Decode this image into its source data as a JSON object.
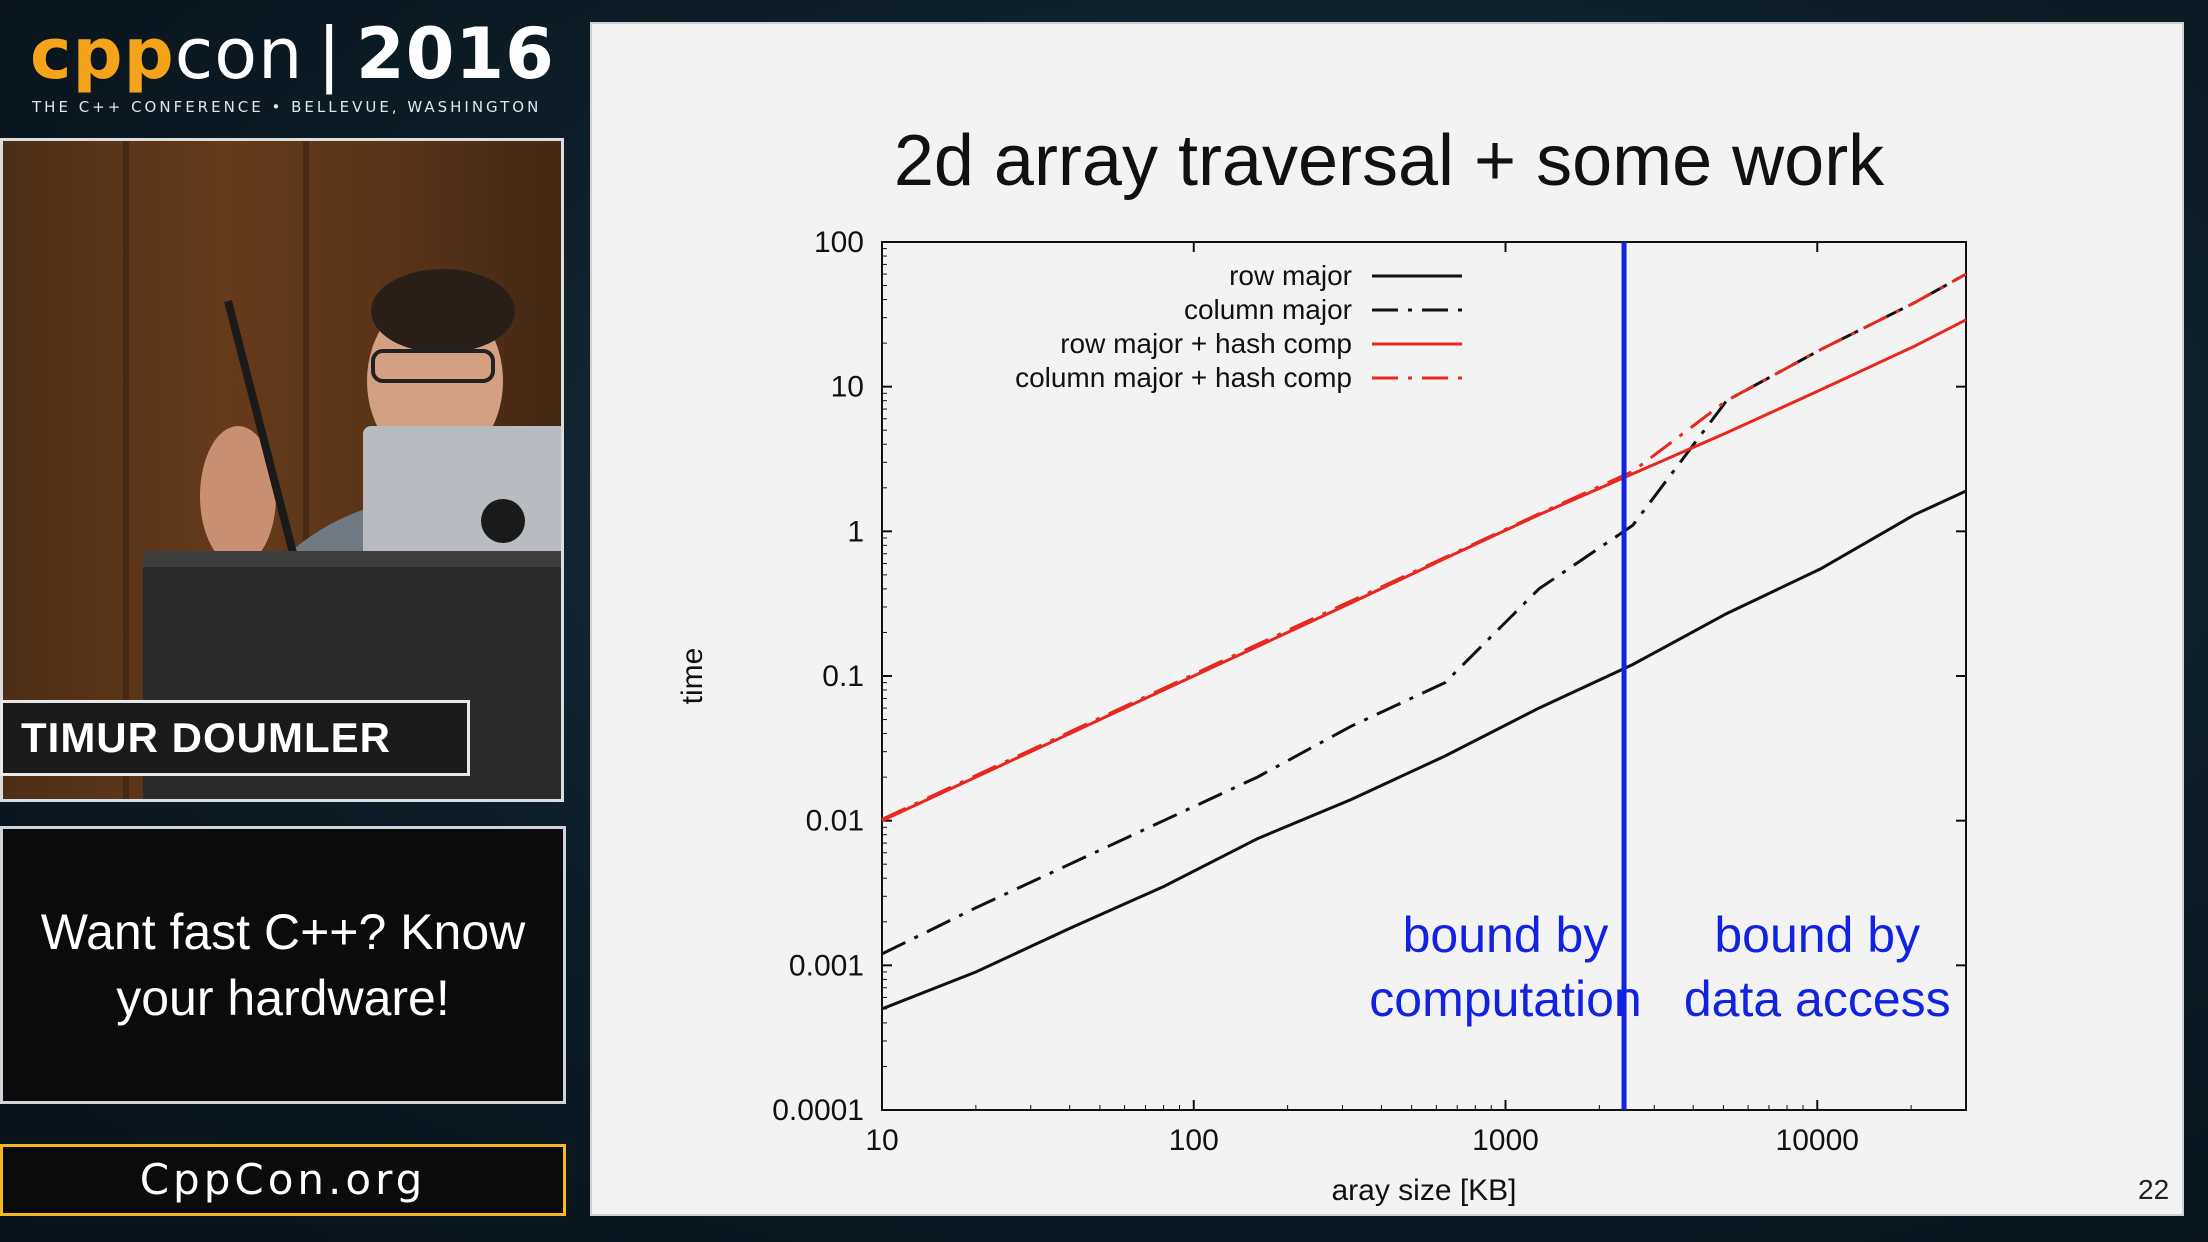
{
  "branding": {
    "logo_cpp": "cpp",
    "logo_con": "con",
    "logo_separator": "|",
    "logo_year": "2016",
    "tagline": "THE C++ CONFERENCE • BELLEVUE, WASHINGTON"
  },
  "speaker": {
    "name": "TIMUR DOUMLER"
  },
  "talk": {
    "title": "Want fast C++? Know your hardware!"
  },
  "site": {
    "url": "CppCon.org"
  },
  "slide": {
    "title": "2d array traversal + some work",
    "page_number": "22"
  },
  "colors": {
    "accent_orange": "#f5a31a",
    "series_black": "#111111",
    "series_red": "#e8281e",
    "divider_blue": "#1122e0"
  },
  "chart_data": {
    "type": "line",
    "xlabel": "aray size [KB]",
    "ylabel": "time",
    "x_scale": "log",
    "y_scale": "log",
    "xlim": [
      10,
      30000
    ],
    "ylim": [
      0.0001,
      100
    ],
    "x_ticks": [
      10,
      100,
      1000,
      10000
    ],
    "x_tick_labels": [
      "10",
      "100",
      "1000",
      "10000"
    ],
    "y_ticks": [
      100,
      10,
      1,
      0.1,
      0.01,
      0.001,
      0.0001
    ],
    "y_tick_labels": [
      "100",
      "10",
      "1",
      "0.1",
      "0.01",
      "0.001",
      "0.0001"
    ],
    "grid": false,
    "legend_position": "top-left",
    "series": [
      {
        "name": "row major",
        "color": "#111111",
        "dash": "solid",
        "points": [
          [
            10,
            0.0005
          ],
          [
            20,
            0.0009
          ],
          [
            40,
            0.0018
          ],
          [
            80,
            0.0035
          ],
          [
            160,
            0.0075
          ],
          [
            320,
            0.014
          ],
          [
            640,
            0.028
          ],
          [
            1280,
            0.06
          ],
          [
            2560,
            0.12
          ],
          [
            5120,
            0.27
          ],
          [
            10240,
            0.55
          ],
          [
            20480,
            1.3
          ],
          [
            30000,
            1.9
          ]
        ]
      },
      {
        "name": "column major",
        "color": "#111111",
        "dash": "dashdot",
        "points": [
          [
            10,
            0.0012
          ],
          [
            20,
            0.0025
          ],
          [
            40,
            0.005
          ],
          [
            80,
            0.01
          ],
          [
            160,
            0.02
          ],
          [
            320,
            0.045
          ],
          [
            640,
            0.09
          ],
          [
            1280,
            0.4
          ],
          [
            2560,
            1.1
          ],
          [
            5120,
            8
          ],
          [
            10240,
            18
          ],
          [
            20480,
            38
          ],
          [
            30000,
            60
          ]
        ]
      },
      {
        "name": "row major + hash comp",
        "color": "#e8281e",
        "dash": "solid",
        "points": [
          [
            10,
            0.01
          ],
          [
            20,
            0.02
          ],
          [
            40,
            0.04
          ],
          [
            80,
            0.08
          ],
          [
            160,
            0.16
          ],
          [
            320,
            0.32
          ],
          [
            640,
            0.65
          ],
          [
            1280,
            1.3
          ],
          [
            2560,
            2.5
          ],
          [
            5120,
            4.8
          ],
          [
            10240,
            9.5
          ],
          [
            20480,
            19
          ],
          [
            30000,
            29
          ]
        ]
      },
      {
        "name": "column major + hash comp",
        "color": "#e8281e",
        "dash": "dashdot",
        "points": [
          [
            10,
            0.0102
          ],
          [
            20,
            0.0205
          ],
          [
            40,
            0.041
          ],
          [
            80,
            0.082
          ],
          [
            160,
            0.165
          ],
          [
            320,
            0.33
          ],
          [
            640,
            0.66
          ],
          [
            1280,
            1.32
          ],
          [
            2560,
            2.6
          ],
          [
            5120,
            8
          ],
          [
            10240,
            18
          ],
          [
            20480,
            38
          ],
          [
            30000,
            60
          ]
        ]
      }
    ],
    "vertical_line": {
      "x": 2400,
      "color": "#1122e0"
    },
    "annotations": [
      {
        "lines": [
          "bound by",
          "computation"
        ],
        "x": 1000,
        "color": "#1122e0"
      },
      {
        "lines": [
          "bound by",
          "data access"
        ],
        "x": 10000,
        "color": "#1122e0"
      }
    ]
  }
}
